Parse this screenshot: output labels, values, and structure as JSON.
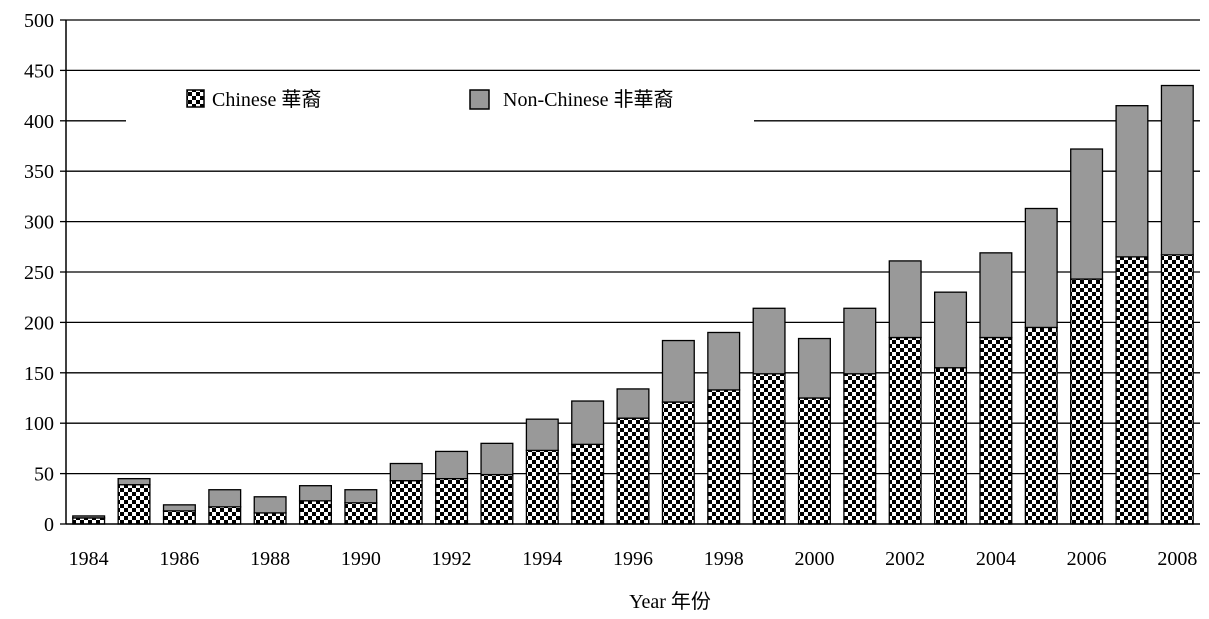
{
  "chart_data": {
    "type": "bar",
    "stacked": true,
    "categories": [
      "1984",
      "1985",
      "1986",
      "1987",
      "1988",
      "1989",
      "1990",
      "1991",
      "1992",
      "1993",
      "1994",
      "1995",
      "1996",
      "1997",
      "1998",
      "1999",
      "2000",
      "2001",
      "2002",
      "2003",
      "2004",
      "2005",
      "2006",
      "2007",
      "2008"
    ],
    "x_tick_labels": [
      "1984",
      "1986",
      "1988",
      "1990",
      "1992",
      "1994",
      "1996",
      "1998",
      "2000",
      "2002",
      "2004",
      "2006",
      "2008"
    ],
    "series": [
      {
        "name": "Chinese 華裔",
        "pattern": "checkerboard",
        "values": [
          6,
          39,
          13,
          17,
          11,
          23,
          21,
          43,
          45,
          49,
          73,
          79,
          105,
          121,
          133,
          149,
          125,
          149,
          185,
          155,
          185,
          195,
          243,
          265,
          267
        ]
      },
      {
        "name": "Non-Chinese 非華裔",
        "color": "#999999",
        "values": [
          2,
          6,
          6,
          17,
          16,
          15,
          13,
          17,
          27,
          31,
          31,
          43,
          29,
          61,
          57,
          65,
          59,
          65,
          76,
          75,
          84,
          118,
          129,
          150,
          168
        ]
      }
    ],
    "y_ticks": [
      0,
      50,
      100,
      150,
      200,
      250,
      300,
      350,
      400,
      450,
      500
    ],
    "ylim": [
      0,
      500
    ],
    "xlabel": "Year 年份",
    "ylabel": "",
    "title": "",
    "grid": true,
    "legend_position": "top"
  }
}
